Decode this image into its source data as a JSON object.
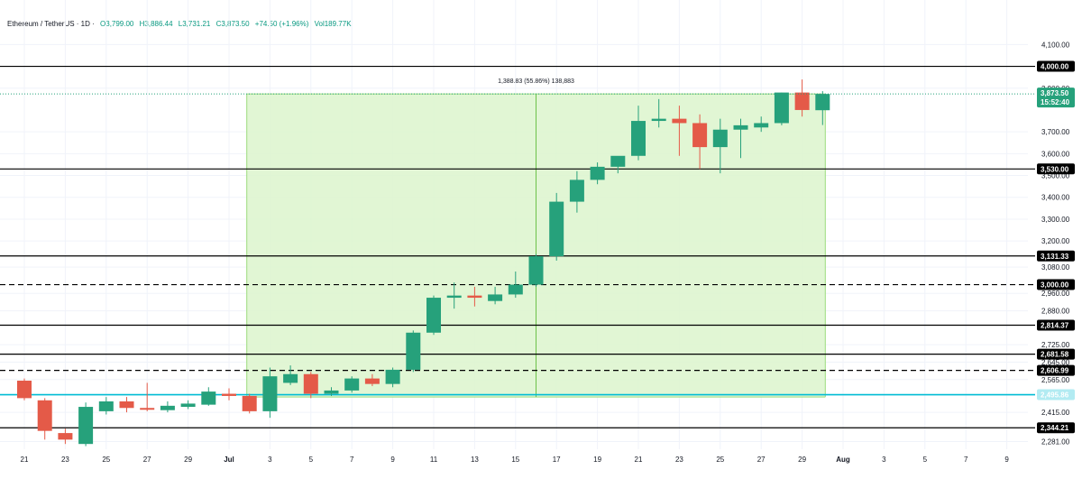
{
  "header": {
    "symbol": "Ethereum / TetherUS · 1D ·",
    "open": "O3,799.00",
    "high": "H3,886.44",
    "low": "L3,731.21",
    "close": "C3,873.50",
    "change": "+74.50 (+1.96%)",
    "volume": "Vol189.77K"
  },
  "colors": {
    "up": "#26a17b",
    "down": "#e45a48",
    "range_fill": "#dcf5cc",
    "range_stroke": "#9bdc7c",
    "support_line": "#00bcd4",
    "level_line": "#000000"
  },
  "chart_data": {
    "type": "candlestick",
    "ylim": [
      2246,
      4180
    ],
    "x_tick_labels": [
      "21",
      "23",
      "25",
      "27",
      "29",
      "Jul",
      "3",
      "5",
      "7",
      "9",
      "11",
      "13",
      "15",
      "17",
      "19",
      "21",
      "23",
      "25",
      "27",
      "29",
      "Aug",
      "3",
      "5",
      "7",
      "9"
    ],
    "y_tick_labels": [
      {
        "value": 4100,
        "text": "4,100.00"
      },
      {
        "value": 3900,
        "text": "3,900.00"
      },
      {
        "value": 3700,
        "text": "3,700.00"
      },
      {
        "value": 3600,
        "text": "3,600.00"
      },
      {
        "value": 3500,
        "text": "3,500.00"
      },
      {
        "value": 3400,
        "text": "3,400.00"
      },
      {
        "value": 3300,
        "text": "3,300.00"
      },
      {
        "value": 3200,
        "text": "3,200.00"
      },
      {
        "value": 3080,
        "text": "3,080.00"
      },
      {
        "value": 2960,
        "text": "2,960.00"
      },
      {
        "value": 2880,
        "text": "2,880.00"
      },
      {
        "value": 2725,
        "text": "2,725.00"
      },
      {
        "value": 2645,
        "text": "2,645.00"
      },
      {
        "value": 2565,
        "text": "2,565.00"
      },
      {
        "value": 2415,
        "text": "2,415.00"
      },
      {
        "value": 2281,
        "text": "2,281.00"
      }
    ],
    "levels": [
      {
        "value": 4000,
        "text": "4,000.00",
        "style": "solid"
      },
      {
        "value": 3530,
        "text": "3,530.00",
        "style": "solid"
      },
      {
        "value": 3131.33,
        "text": "3,131.33",
        "style": "solid"
      },
      {
        "value": 3000,
        "text": "3,000.00",
        "style": "dashed"
      },
      {
        "value": 2814.37,
        "text": "2,814.37",
        "style": "solid"
      },
      {
        "value": 2681.58,
        "text": "2,681.58",
        "style": "solid"
      },
      {
        "value": 2606.99,
        "text": "2,606.99",
        "style": "dashed"
      },
      {
        "value": 2495.86,
        "text": "2,495.86",
        "style": "support"
      },
      {
        "value": 2344.21,
        "text": "2,344.21",
        "style": "solid"
      }
    ],
    "price_label": {
      "value": 3873.5,
      "price": "3,873.50",
      "countdown": "15:52:40"
    },
    "measure": {
      "text": "1,388.83 (55.86%) 138,883",
      "from_index": 11,
      "to_index": 39,
      "low": 2485,
      "high": 3873.5
    },
    "candles": [
      {
        "o": 2560,
        "h": 2570,
        "l": 2470,
        "c": 2480
      },
      {
        "o": 2470,
        "h": 2480,
        "l": 2290,
        "c": 2330
      },
      {
        "o": 2320,
        "h": 2340,
        "l": 2270,
        "c": 2290
      },
      {
        "o": 2270,
        "h": 2460,
        "l": 2260,
        "c": 2440
      },
      {
        "o": 2420,
        "h": 2485,
        "l": 2405,
        "c": 2465
      },
      {
        "o": 2465,
        "h": 2485,
        "l": 2415,
        "c": 2435
      },
      {
        "o": 2435,
        "h": 2550,
        "l": 2420,
        "c": 2430
      },
      {
        "o": 2425,
        "h": 2465,
        "l": 2415,
        "c": 2445
      },
      {
        "o": 2440,
        "h": 2470,
        "l": 2430,
        "c": 2455
      },
      {
        "o": 2450,
        "h": 2530,
        "l": 2445,
        "c": 2510
      },
      {
        "o": 2500,
        "h": 2525,
        "l": 2470,
        "c": 2490
      },
      {
        "o": 2490,
        "h": 2500,
        "l": 2410,
        "c": 2420
      },
      {
        "o": 2420,
        "h": 2620,
        "l": 2390,
        "c": 2580
      },
      {
        "o": 2550,
        "h": 2630,
        "l": 2540,
        "c": 2590
      },
      {
        "o": 2590,
        "h": 2600,
        "l": 2480,
        "c": 2500
      },
      {
        "o": 2500,
        "h": 2530,
        "l": 2490,
        "c": 2515
      },
      {
        "o": 2515,
        "h": 2580,
        "l": 2505,
        "c": 2570
      },
      {
        "o": 2570,
        "h": 2590,
        "l": 2535,
        "c": 2545
      },
      {
        "o": 2545,
        "h": 2620,
        "l": 2530,
        "c": 2610
      },
      {
        "o": 2610,
        "h": 2790,
        "l": 2600,
        "c": 2780
      },
      {
        "o": 2780,
        "h": 2950,
        "l": 2770,
        "c": 2940
      },
      {
        "o": 2940,
        "h": 3010,
        "l": 2890,
        "c": 2950
      },
      {
        "o": 2950,
        "h": 2990,
        "l": 2900,
        "c": 2940
      },
      {
        "o": 2925,
        "h": 2990,
        "l": 2910,
        "c": 2955
      },
      {
        "o": 2955,
        "h": 3060,
        "l": 2940,
        "c": 3000
      },
      {
        "o": 3000,
        "h": 3140,
        "l": 2990,
        "c": 3130
      },
      {
        "o": 3130,
        "h": 3420,
        "l": 3110,
        "c": 3380
      },
      {
        "o": 3380,
        "h": 3520,
        "l": 3330,
        "c": 3480
      },
      {
        "o": 3480,
        "h": 3560,
        "l": 3460,
        "c": 3540
      },
      {
        "o": 3540,
        "h": 3580,
        "l": 3510,
        "c": 3590
      },
      {
        "o": 3590,
        "h": 3820,
        "l": 3570,
        "c": 3750
      },
      {
        "o": 3750,
        "h": 3850,
        "l": 3720,
        "c": 3760
      },
      {
        "o": 3760,
        "h": 3820,
        "l": 3590,
        "c": 3740
      },
      {
        "o": 3740,
        "h": 3780,
        "l": 3530,
        "c": 3630
      },
      {
        "o": 3630,
        "h": 3760,
        "l": 3510,
        "c": 3710
      },
      {
        "o": 3710,
        "h": 3760,
        "l": 3580,
        "c": 3730
      },
      {
        "o": 3720,
        "h": 3770,
        "l": 3700,
        "c": 3740
      },
      {
        "o": 3740,
        "h": 3880,
        "l": 3730,
        "c": 3880
      },
      {
        "o": 3880,
        "h": 3940,
        "l": 3770,
        "c": 3800
      },
      {
        "o": 3799,
        "h": 3886.44,
        "l": 3731.21,
        "c": 3873.5
      }
    ]
  }
}
